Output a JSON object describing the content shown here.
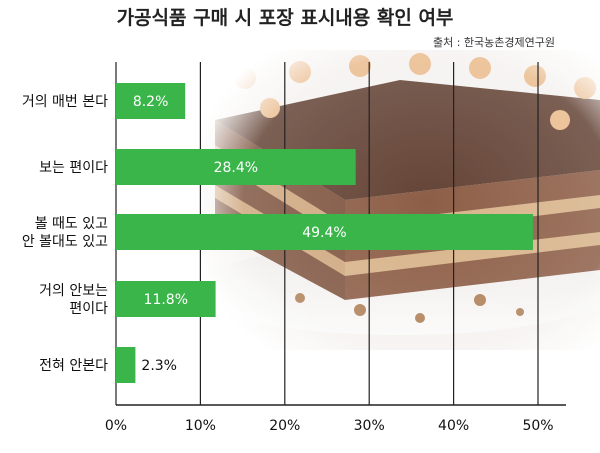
{
  "chart_data": {
    "type": "bar",
    "orientation": "horizontal",
    "title": "가공식품 구매 시 포장 표시내용 확인 여부",
    "source": "출처 : 한국농촌경제연구원",
    "categories": [
      [
        "거의 매번 본다"
      ],
      [
        "보는 편이다"
      ],
      [
        "볼 때도 있고",
        "안 볼대도 있고"
      ],
      [
        "거의 안보는",
        "편이다"
      ],
      [
        "전혀 안본다"
      ]
    ],
    "values": [
      8.2,
      28.4,
      49.4,
      11.8,
      2.3
    ],
    "value_labels": [
      "8.2%",
      "28.4%",
      "49.4%",
      "11.8%",
      "2.3%"
    ],
    "xlim": [
      0,
      50
    ],
    "xticks": [
      0,
      10,
      20,
      30,
      40,
      50
    ],
    "xtick_labels": [
      "0%",
      "10%",
      "20%",
      "30%",
      "40%",
      "50%"
    ],
    "grid": "vertical",
    "bar_color": "#3ab54a",
    "background": "cake-photo"
  }
}
